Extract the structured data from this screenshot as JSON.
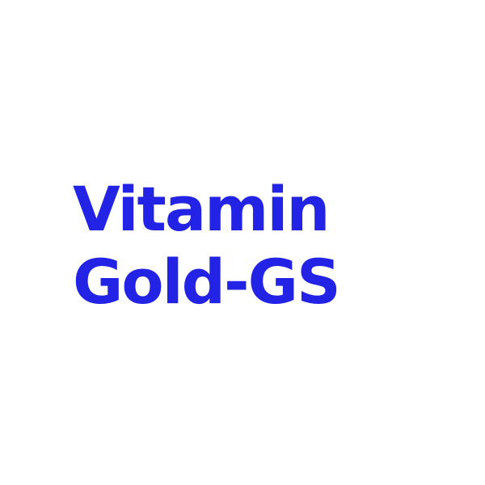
{
  "title": {
    "line1": "Vitamin",
    "line2": "Gold-GS"
  },
  "colors": {
    "text": "#2323e6",
    "background": "#ffffff"
  }
}
